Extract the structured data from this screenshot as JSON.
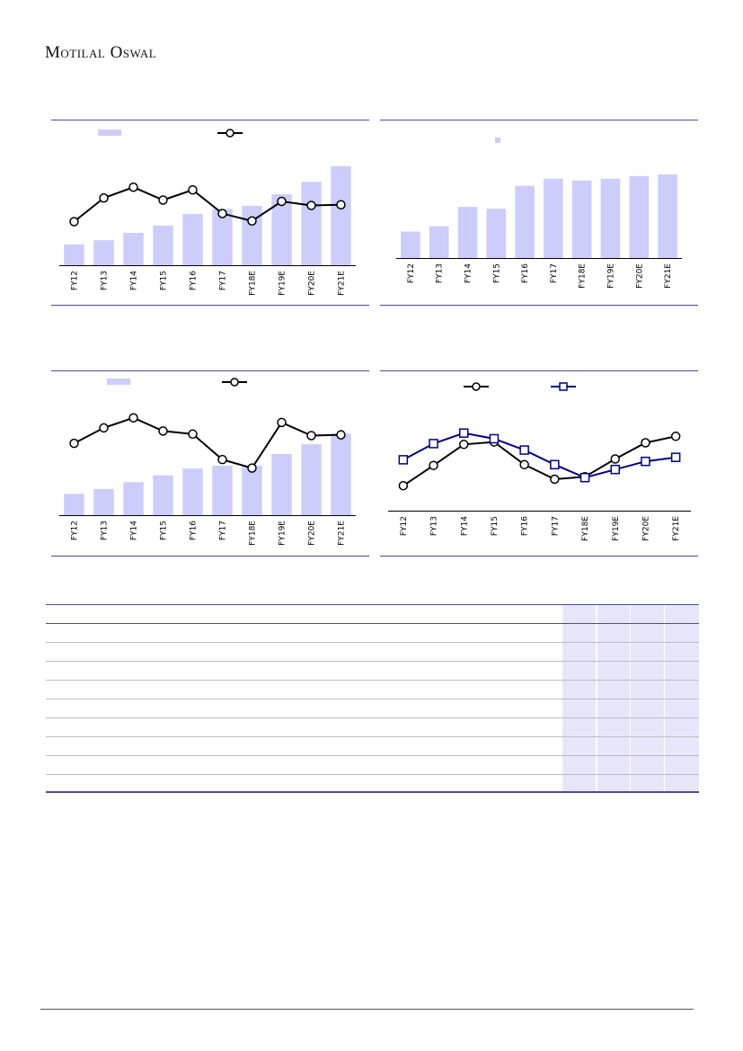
{
  "header": {
    "logo_text": "Motilal Oswal"
  },
  "chart_data": [
    {
      "type": "bar+line",
      "categories": [
        "FY12",
        "FY13",
        "FY14",
        "FY15",
        "FY16",
        "FY17",
        "FY18E",
        "FY19E",
        "FY20E",
        "FY21E"
      ],
      "series": [
        {
          "kind": "bar",
          "values": [
            20,
            24,
            31,
            38,
            49,
            54,
            57,
            68,
            80,
            95
          ]
        },
        {
          "kind": "line",
          "marker": "circle",
          "values": [
            30,
            65,
            81,
            62,
            77,
            42,
            31,
            60,
            54,
            55
          ]
        }
      ],
      "legend": "top"
    },
    {
      "type": "bar",
      "categories": [
        "FY12",
        "FY13",
        "FY14",
        "FY15",
        "FY16",
        "FY17",
        "FY18E",
        "FY19E",
        "FY20E",
        "FY21E"
      ],
      "values": [
        30,
        36,
        58,
        56,
        82,
        90,
        88,
        90,
        93,
        95
      ],
      "legend": "top"
    },
    {
      "type": "bar+line",
      "categories": [
        "FY12",
        "FY13",
        "FY14",
        "FY15",
        "FY16",
        "FY17",
        "FY18E",
        "FY19E",
        "FY20E",
        "FY21E"
      ],
      "series": [
        {
          "kind": "bar",
          "values": [
            22,
            27,
            34,
            41,
            48,
            51,
            51,
            63,
            73,
            84
          ]
        },
        {
          "kind": "line",
          "marker": "circle",
          "values": [
            58,
            78,
            91,
            74,
            70,
            37,
            26,
            85,
            68,
            69
          ]
        }
      ],
      "legend": "top"
    },
    {
      "type": "line",
      "categories": [
        "FY12",
        "FY13",
        "FY14",
        "FY15",
        "FY16",
        "FY17",
        "FY18E",
        "FY19E",
        "FY20E",
        "FY21E"
      ],
      "series": [
        {
          "color": "#000000",
          "marker": "circle",
          "values": [
            12,
            37,
            63,
            66,
            38,
            20,
            23,
            45,
            65,
            73
          ]
        },
        {
          "color": "#000080",
          "marker": "square",
          "values": [
            44,
            64,
            77,
            70,
            56,
            38,
            22,
            32,
            42,
            47
          ]
        }
      ],
      "legend": "top"
    }
  ],
  "table": {
    "rows": 9,
    "shaded_columns": 4
  },
  "colors": {
    "bar": "#cccdfb",
    "rule": "#4b4b99",
    "line_black": "#000000",
    "line_navy": "#000080"
  }
}
